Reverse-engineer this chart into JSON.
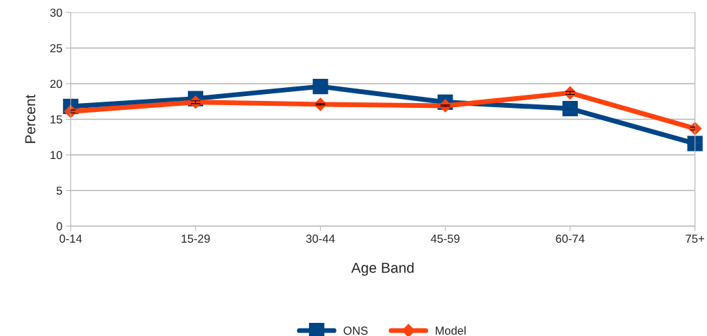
{
  "chart_data": {
    "type": "line",
    "xlabel": "Age Band",
    "ylabel": "Percent",
    "categories": [
      "0-14",
      "15-29",
      "30-44",
      "45-59",
      "60-74",
      "75+"
    ],
    "series": [
      {
        "name": "ONS",
        "color": "#004586",
        "marker": "square",
        "values": [
          16.8,
          17.9,
          19.6,
          17.4,
          16.5,
          11.6
        ]
      },
      {
        "name": "Model",
        "color": "#ff420e",
        "marker": "diamond",
        "values": [
          16.1,
          17.4,
          17.1,
          16.9,
          18.7,
          13.7
        ],
        "errors": [
          0.2,
          0.2,
          0.1,
          0.1,
          0.2,
          0.2
        ]
      }
    ],
    "ylim": [
      0,
      30
    ],
    "yticks": [
      0,
      5,
      10,
      15,
      20,
      25,
      30
    ],
    "grid": "y",
    "legend": "bottom",
    "line_style": "solid"
  }
}
